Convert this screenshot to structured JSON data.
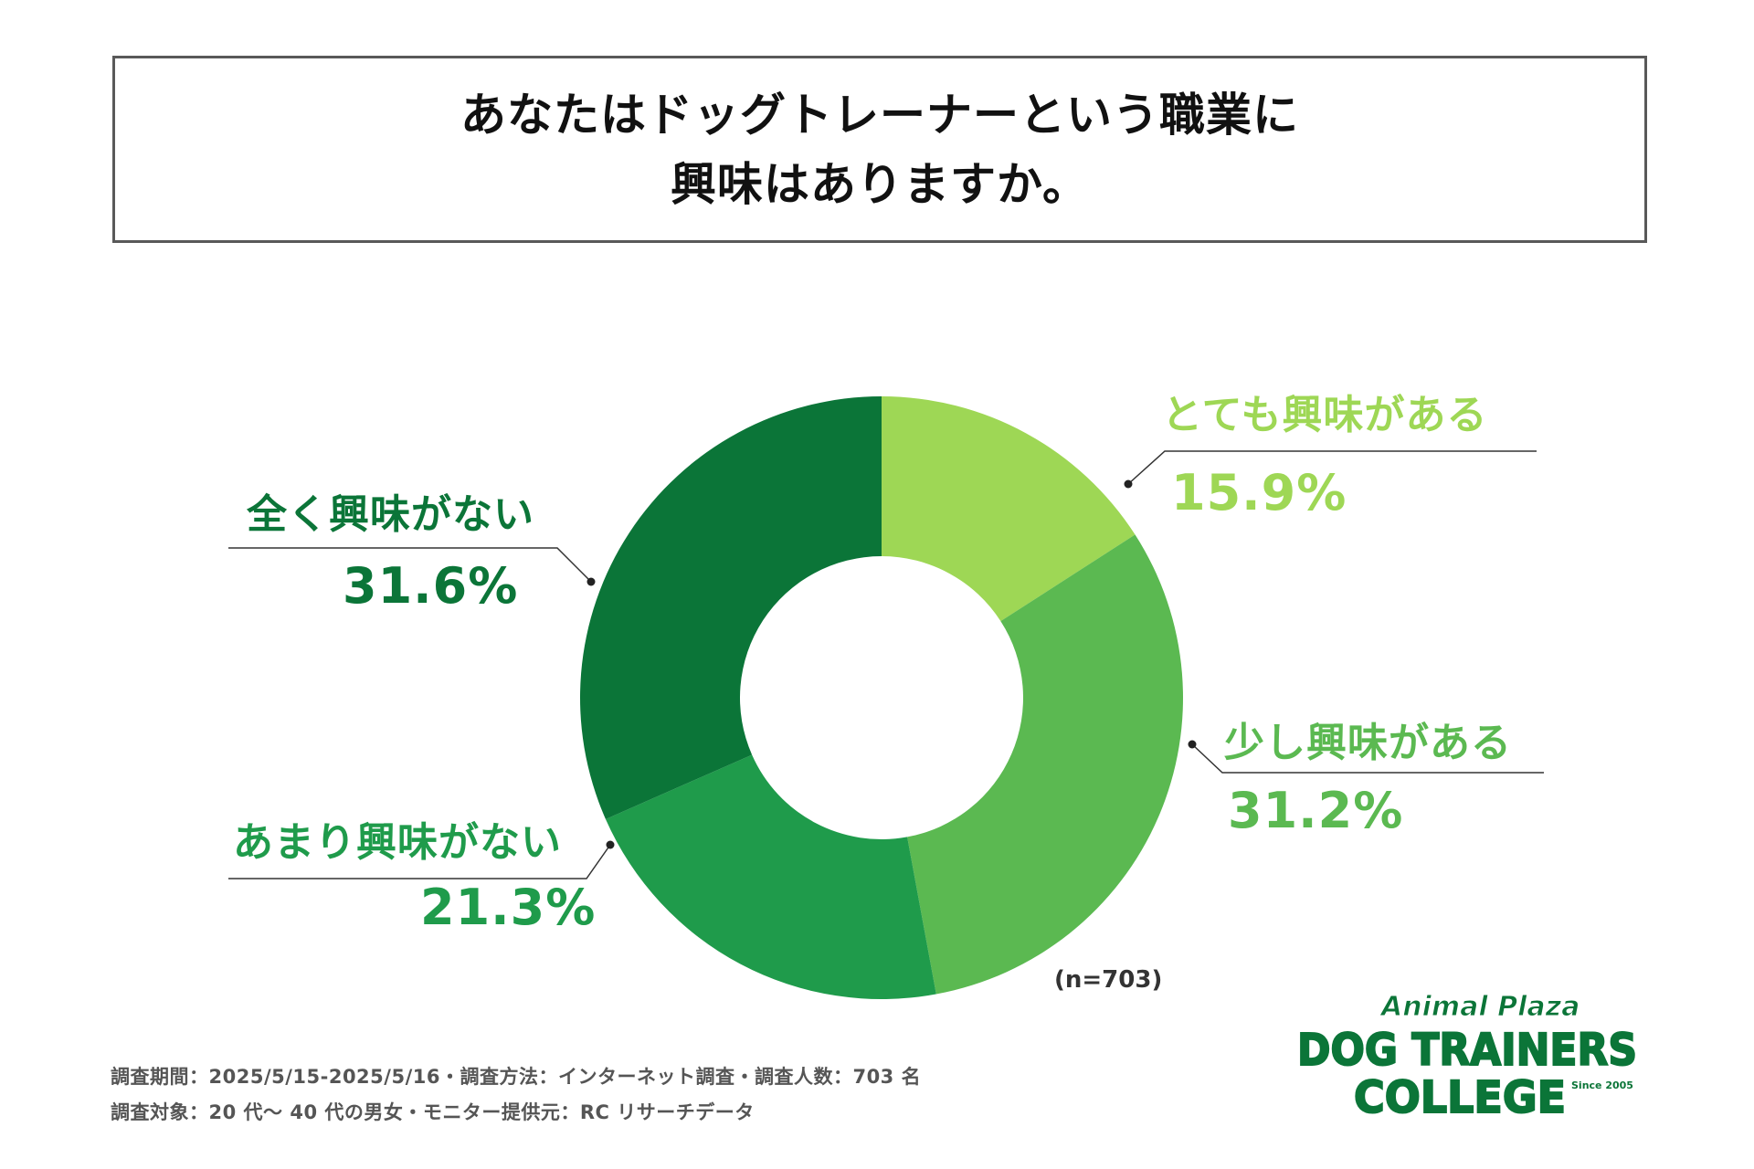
{
  "title": {
    "line1": "あなたはドッグトレーナーという職業に",
    "line2": "興味はありますか。"
  },
  "chart_data": {
    "type": "pie",
    "donut": true,
    "categories": [
      "とても興味がある",
      "少し興味がある",
      "あまり興味がない",
      "全く興味がない"
    ],
    "values": [
      15.9,
      31.2,
      21.3,
      31.6
    ],
    "value_labels": [
      "15.9%",
      "31.2%",
      "21.3%",
      "31.6%"
    ],
    "colors": [
      "#9ed755",
      "#5bb951",
      "#1f9b4b",
      "#0b7538"
    ],
    "start": "12 o'clock",
    "direction": "clockwise",
    "legend": "none",
    "note": "(n=703)"
  },
  "footnotes": {
    "line1": "調査期間：2025/5/15-2025/5/16・調査方法：インターネット調査・調査人数：703 名",
    "line2": "調査対象：20 代〜 40 代の男女・モニター提供元：RC リサーチデータ"
  },
  "logo": {
    "top": "Animal Plaza",
    "middle": "DOG TRAINERS",
    "bottom": "COLLEGE",
    "since": "Since 2005",
    "colors": {
      "green": "#0b7538",
      "outline": "#ffffff"
    }
  }
}
